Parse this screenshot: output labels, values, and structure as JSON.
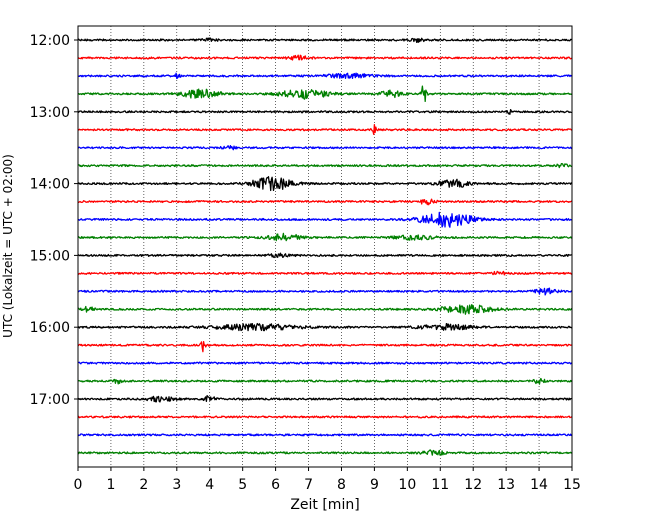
{
  "chart_data": {
    "type": "line",
    "title": "",
    "xlabel": "Zeit  [min]",
    "ylabel": "UTC (Lokalzeit = UTC + 02:00)",
    "xlim": [
      0,
      15
    ],
    "x_ticks": [
      0,
      1,
      2,
      3,
      4,
      5,
      6,
      7,
      8,
      9,
      10,
      11,
      12,
      13,
      14,
      15
    ],
    "x_tick_labels": [
      "0",
      "1",
      "2",
      "3",
      "4",
      "5",
      "6",
      "7",
      "8",
      "9",
      "10",
      "11",
      "12",
      "13",
      "14",
      "15"
    ],
    "y_ticks": [
      "12:00",
      "13:00",
      "14:00",
      "15:00",
      "16:00",
      "17:00"
    ],
    "trace_interval_min": 15,
    "vertical_grid": true,
    "grid_style": "dotted",
    "color_cycle": [
      "#000000",
      "#ff0000",
      "#0000ff",
      "#008000"
    ],
    "series": [
      {
        "start": "12:00",
        "color": "#000000",
        "bursts": [
          {
            "t": 4.0,
            "amp": 0.5,
            "w": 0.4
          },
          {
            "t": 10.3,
            "amp": 0.5,
            "w": 0.4
          }
        ]
      },
      {
        "start": "12:15",
        "color": "#ff0000",
        "bursts": [
          {
            "t": 6.7,
            "amp": 0.6,
            "w": 0.6
          }
        ]
      },
      {
        "start": "12:30",
        "color": "#0000ff",
        "bursts": [
          {
            "t": 3.0,
            "amp": 0.9,
            "w": 0.15
          },
          {
            "t": 8.3,
            "amp": 0.6,
            "w": 1.5
          }
        ]
      },
      {
        "start": "12:45",
        "color": "#008000",
        "bursts": [
          {
            "t": 3.7,
            "amp": 1.3,
            "w": 1.1
          },
          {
            "t": 6.9,
            "amp": 1.4,
            "w": 1.4
          },
          {
            "t": 9.5,
            "amp": 1.0,
            "w": 0.6
          },
          {
            "t": 10.5,
            "amp": 3.0,
            "w": 0.15
          }
        ]
      },
      {
        "start": "13:00",
        "color": "#000000",
        "bursts": [
          {
            "t": 13.1,
            "amp": 2.0,
            "w": 0.08
          }
        ]
      },
      {
        "start": "13:15",
        "color": "#ff0000",
        "bursts": [
          {
            "t": 9.0,
            "amp": 1.5,
            "w": 0.12
          }
        ]
      },
      {
        "start": "13:30",
        "color": "#0000ff",
        "bursts": [
          {
            "t": 4.6,
            "amp": 0.5,
            "w": 0.4
          }
        ]
      },
      {
        "start": "13:45",
        "color": "#008000",
        "bursts": [
          {
            "t": 14.7,
            "amp": 0.8,
            "w": 0.25
          }
        ]
      },
      {
        "start": "14:00",
        "color": "#000000",
        "bursts": [
          {
            "t": 5.9,
            "amp": 2.0,
            "w": 1.2
          },
          {
            "t": 11.4,
            "amp": 1.5,
            "w": 0.8
          }
        ]
      },
      {
        "start": "14:15",
        "color": "#ff0000",
        "bursts": [
          {
            "t": 10.6,
            "amp": 1.0,
            "w": 0.4
          }
        ]
      },
      {
        "start": "14:30",
        "color": "#0000ff",
        "bursts": [
          {
            "t": 11.2,
            "amp": 2.2,
            "w": 1.5
          }
        ]
      },
      {
        "start": "14:45",
        "color": "#008000",
        "bursts": [
          {
            "t": 6.3,
            "amp": 1.0,
            "w": 1.0
          },
          {
            "t": 10.2,
            "amp": 0.6,
            "w": 1.2
          }
        ]
      },
      {
        "start": "15:00",
        "color": "#000000",
        "bursts": [
          {
            "t": 6.1,
            "amp": 0.5,
            "w": 0.6
          }
        ]
      },
      {
        "start": "15:15",
        "color": "#ff0000",
        "bursts": [
          {
            "t": 12.8,
            "amp": 0.5,
            "w": 0.4
          }
        ]
      },
      {
        "start": "15:30",
        "color": "#0000ff",
        "bursts": [
          {
            "t": 14.2,
            "amp": 0.9,
            "w": 0.6
          }
        ]
      },
      {
        "start": "15:45",
        "color": "#008000",
        "bursts": [
          {
            "t": 0.3,
            "amp": 0.9,
            "w": 0.3
          },
          {
            "t": 11.8,
            "amp": 1.3,
            "w": 1.5
          }
        ]
      },
      {
        "start": "16:00",
        "color": "#000000",
        "bursts": [
          {
            "t": 5.4,
            "amp": 0.9,
            "w": 2.5
          },
          {
            "t": 11.2,
            "amp": 0.9,
            "w": 1.5
          }
        ]
      },
      {
        "start": "16:15",
        "color": "#ff0000",
        "bursts": [
          {
            "t": 3.8,
            "amp": 2.0,
            "w": 0.12
          }
        ]
      },
      {
        "start": "16:30",
        "color": "#0000ff",
        "bursts": []
      },
      {
        "start": "16:45",
        "color": "#008000",
        "bursts": [
          {
            "t": 1.2,
            "amp": 1.0,
            "w": 0.2
          },
          {
            "t": 14.0,
            "amp": 0.8,
            "w": 0.3
          }
        ]
      },
      {
        "start": "17:00",
        "color": "#000000",
        "bursts": [
          {
            "t": 2.5,
            "amp": 0.7,
            "w": 0.8
          },
          {
            "t": 4.0,
            "amp": 1.0,
            "w": 0.3
          }
        ]
      },
      {
        "start": "17:15",
        "color": "#ff0000",
        "bursts": []
      },
      {
        "start": "17:30",
        "color": "#0000ff",
        "bursts": []
      },
      {
        "start": "17:45",
        "color": "#008000",
        "bursts": [
          {
            "t": 10.8,
            "amp": 0.8,
            "w": 0.6
          }
        ]
      }
    ]
  }
}
